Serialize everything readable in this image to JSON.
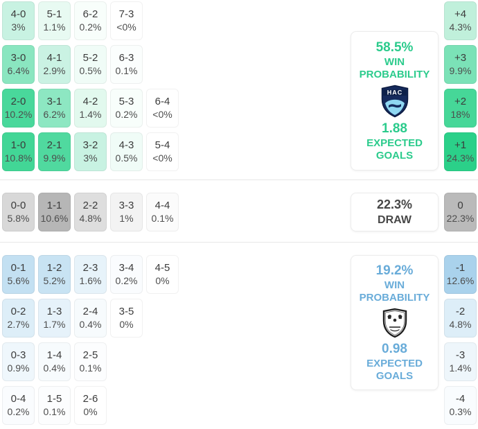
{
  "chart_data": {
    "type": "heatmap",
    "description": "Correct score probability matrix with win/draw/loss probabilities, expected goals and goal-difference margins",
    "home": {
      "panel": {
        "win_probability": "58.5%",
        "expected_goals": "1.88",
        "badge_text": "HAC"
      },
      "rows": [
        [
          {
            "score": "4-0",
            "pct": "3%",
            "bg": "#c8f2e2"
          },
          {
            "score": "5-1",
            "pct": "1.1%",
            "bg": "#e8faf2"
          },
          {
            "score": "6-2",
            "pct": "0.2%",
            "bg": "#f8fefb"
          },
          {
            "score": "7-3",
            "pct": "<0%",
            "bg": "#ffffff"
          }
        ],
        [
          {
            "score": "3-0",
            "pct": "6.4%",
            "bg": "#8ae6c0"
          },
          {
            "score": "4-1",
            "pct": "2.9%",
            "bg": "#caf2e3"
          },
          {
            "score": "5-2",
            "pct": "0.5%",
            "bg": "#f0fcf7"
          },
          {
            "score": "6-3",
            "pct": "0.1%",
            "bg": "#fbfefd"
          }
        ],
        [
          {
            "score": "2-0",
            "pct": "10.2%",
            "bg": "#49d89b"
          },
          {
            "score": "3-1",
            "pct": "6.2%",
            "bg": "#8de7c2"
          },
          {
            "score": "4-2",
            "pct": "1.4%",
            "bg": "#e2f9ee"
          },
          {
            "score": "5-3",
            "pct": "0.2%",
            "bg": "#f8fefb"
          },
          {
            "score": "6-4",
            "pct": "<0%",
            "bg": "#ffffff"
          }
        ],
        [
          {
            "score": "1-0",
            "pct": "10.8%",
            "bg": "#42d696"
          },
          {
            "score": "2-1",
            "pct": "9.9%",
            "bg": "#50d99f"
          },
          {
            "score": "3-2",
            "pct": "3%",
            "bg": "#c8f2e2"
          },
          {
            "score": "4-3",
            "pct": "0.5%",
            "bg": "#f0fcf7"
          },
          {
            "score": "5-4",
            "pct": "<0%",
            "bg": "#ffffff"
          }
        ]
      ],
      "margins": [
        {
          "diff": "+4",
          "pct": "4.3%",
          "bg": "#c0f0db"
        },
        {
          "diff": "+3",
          "pct": "9.9%",
          "bg": "#7be2b7"
        },
        {
          "diff": "+2",
          "pct": "18%",
          "bg": "#46d798"
        },
        {
          "diff": "+1",
          "pct": "24.3%",
          "bg": "#2bd089"
        }
      ]
    },
    "draw": {
      "panel": {
        "probability": "22.3%",
        "label": "DRAW"
      },
      "rows": [
        [
          {
            "score": "0-0",
            "pct": "5.8%",
            "bg": "#d8d8d8"
          },
          {
            "score": "1-1",
            "pct": "10.6%",
            "bg": "#b6b6b6"
          },
          {
            "score": "2-2",
            "pct": "4.8%",
            "bg": "#dedede"
          },
          {
            "score": "3-3",
            "pct": "1%",
            "bg": "#f3f3f3"
          },
          {
            "score": "4-4",
            "pct": "0.1%",
            "bg": "#fbfbfb"
          }
        ]
      ],
      "margins": [
        {
          "diff": "0",
          "pct": "22.3%",
          "bg": "#bababa"
        }
      ]
    },
    "away": {
      "panel": {
        "win_probability": "19.2%",
        "expected_goals": "0.98"
      },
      "rows": [
        [
          {
            "score": "0-1",
            "pct": "5.6%",
            "bg": "#c3e0f2"
          },
          {
            "score": "1-2",
            "pct": "5.2%",
            "bg": "#c8e3f3"
          },
          {
            "score": "2-3",
            "pct": "1.6%",
            "bg": "#e7f3fa"
          },
          {
            "score": "3-4",
            "pct": "0.2%",
            "bg": "#fafcfe"
          },
          {
            "score": "4-5",
            "pct": "0%",
            "bg": "#ffffff"
          }
        ],
        [
          {
            "score": "0-2",
            "pct": "2.7%",
            "bg": "#ddeef8"
          },
          {
            "score": "1-3",
            "pct": "1.7%",
            "bg": "#e6f2fa"
          },
          {
            "score": "2-4",
            "pct": "0.4%",
            "bg": "#f7fbfd"
          },
          {
            "score": "3-5",
            "pct": "0%",
            "bg": "#ffffff"
          }
        ],
        [
          {
            "score": "0-3",
            "pct": "0.9%",
            "bg": "#eff7fc"
          },
          {
            "score": "1-4",
            "pct": "0.4%",
            "bg": "#f7fbfd"
          },
          {
            "score": "2-5",
            "pct": "0.1%",
            "bg": "#fcfdfe"
          }
        ],
        [
          {
            "score": "0-4",
            "pct": "0.2%",
            "bg": "#fafcfe"
          },
          {
            "score": "1-5",
            "pct": "0.1%",
            "bg": "#fcfdfe"
          },
          {
            "score": "2-6",
            "pct": "0%",
            "bg": "#ffffff"
          }
        ]
      ],
      "margins": [
        {
          "diff": "-1",
          "pct": "12.6%",
          "bg": "#aad2ec"
        },
        {
          "diff": "-2",
          "pct": "4.8%",
          "bg": "#ddeef8"
        },
        {
          "diff": "-3",
          "pct": "1.4%",
          "bg": "#eef6fb"
        },
        {
          "diff": "-4",
          "pct": "0.3%",
          "bg": "#f9fcfe"
        }
      ]
    }
  },
  "labels": {
    "win": "WIN",
    "probability": "PROBABILITY",
    "expected": "EXPECTED",
    "goals": "GOALS"
  },
  "colors": {
    "home_accent": "#2bcb8c",
    "away_accent": "#69acd9",
    "draw_text": "#474747",
    "divider": "#e7e7e7",
    "home_badge_navy": "#152a5c",
    "home_badge_lightblue": "#8fd8f2",
    "away_badge_outline": "#1f1f1f"
  }
}
